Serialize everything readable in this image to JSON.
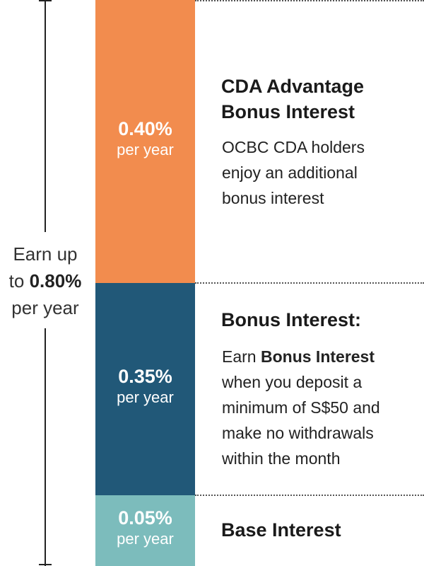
{
  "colors": {
    "cda_bar": "#f28c4e",
    "bonus_bar": "#215878",
    "base_bar": "#7cbcbc"
  },
  "total": {
    "prefix_line1": "Earn up",
    "prefix_line2": "to",
    "rate": "0.80%",
    "suffix": "per year"
  },
  "tiers": [
    {
      "rate": "0.40%",
      "unit": "per year",
      "title_line1": "CDA Advantage",
      "title_line2": "Bonus Interest",
      "description": [
        "OCBC CDA holders",
        "enjoy an additional",
        "bonus interest"
      ]
    },
    {
      "rate": "0.35%",
      "unit": "per year",
      "title": "Bonus Interest:",
      "description_prefix": "Earn",
      "description_bold": "Bonus Interest",
      "description": [
        "when you deposit a",
        "minimum of S$50 and",
        "make no withdrawals",
        "within the month"
      ]
    },
    {
      "rate": "0.05%",
      "unit": "per year",
      "title": "Base Interest"
    }
  ]
}
